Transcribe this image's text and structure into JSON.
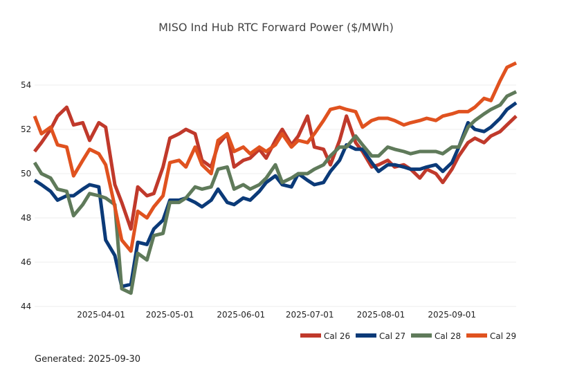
{
  "footer": {
    "generated": "Generated: 2025-09-30"
  },
  "chart_data": {
    "type": "line",
    "title": "MISO Ind Hub RTC Forward Power ($/MWh)",
    "xlabel": "",
    "ylabel": "",
    "ylim": [
      44,
      55.2
    ],
    "xlim": [
      "2025-03-03",
      "2025-09-29"
    ],
    "yticks": [
      44,
      46,
      48,
      50,
      52,
      54
    ],
    "xticks": [
      "2025-04-01",
      "2025-05-01",
      "2025-06-01",
      "2025-07-01",
      "2025-08-01",
      "2025-09-01"
    ],
    "grid": true,
    "legend_position": "bottom-right",
    "x": [
      "2025-03-03",
      "2025-03-06",
      "2025-03-10",
      "2025-03-13",
      "2025-03-17",
      "2025-03-20",
      "2025-03-24",
      "2025-03-27",
      "2025-03-31",
      "2025-04-03",
      "2025-04-07",
      "2025-04-10",
      "2025-04-14",
      "2025-04-17",
      "2025-04-21",
      "2025-04-24",
      "2025-04-28",
      "2025-05-01",
      "2025-05-05",
      "2025-05-08",
      "2025-05-12",
      "2025-05-15",
      "2025-05-19",
      "2025-05-22",
      "2025-05-26",
      "2025-05-29",
      "2025-06-02",
      "2025-06-05",
      "2025-06-09",
      "2025-06-12",
      "2025-06-16",
      "2025-06-19",
      "2025-06-23",
      "2025-06-26",
      "2025-06-30",
      "2025-07-03",
      "2025-07-07",
      "2025-07-10",
      "2025-07-14",
      "2025-07-17",
      "2025-07-21",
      "2025-07-24",
      "2025-07-28",
      "2025-07-31",
      "2025-08-04",
      "2025-08-07",
      "2025-08-11",
      "2025-08-14",
      "2025-08-18",
      "2025-08-21",
      "2025-08-25",
      "2025-08-28",
      "2025-09-01",
      "2025-09-04",
      "2025-09-08",
      "2025-09-11",
      "2025-09-15",
      "2025-09-18",
      "2025-09-22",
      "2025-09-25",
      "2025-09-29"
    ],
    "series": [
      {
        "name": "Cal 26",
        "color": "#c0392b",
        "values": [
          51.0,
          51.4,
          52.0,
          52.6,
          53.0,
          52.2,
          52.3,
          51.5,
          52.3,
          52.1,
          49.5,
          48.7,
          47.5,
          49.4,
          49.0,
          49.1,
          50.3,
          51.6,
          51.8,
          52.0,
          51.8,
          50.6,
          50.3,
          51.3,
          51.8,
          50.3,
          50.6,
          50.7,
          51.1,
          50.7,
          51.5,
          52.0,
          51.3,
          51.7,
          52.6,
          51.2,
          51.1,
          50.4,
          51.5,
          52.6,
          51.4,
          51.0,
          50.3,
          50.4,
          50.6,
          50.3,
          50.4,
          50.2,
          49.8,
          50.2,
          50.0,
          49.6,
          50.2,
          50.8,
          51.4,
          51.6,
          51.4,
          51.7,
          51.9,
          52.2,
          52.6
        ]
      },
      {
        "name": "Cal 27",
        "color": "#0b3a78",
        "values": [
          49.7,
          49.5,
          49.2,
          48.8,
          49.0,
          49.0,
          49.3,
          49.5,
          49.4,
          47.0,
          46.3,
          44.9,
          45.0,
          46.9,
          46.8,
          47.5,
          47.9,
          48.8,
          48.8,
          48.9,
          48.7,
          48.5,
          48.8,
          49.3,
          48.7,
          48.6,
          48.9,
          48.8,
          49.2,
          49.6,
          49.9,
          49.5,
          49.4,
          50.0,
          49.7,
          49.5,
          49.6,
          50.1,
          50.6,
          51.3,
          51.1,
          51.1,
          50.5,
          50.1,
          50.4,
          50.4,
          50.3,
          50.2,
          50.2,
          50.3,
          50.4,
          50.1,
          50.5,
          51.2,
          52.3,
          52.0,
          51.9,
          52.1,
          52.5,
          52.9,
          53.2
        ]
      },
      {
        "name": "Cal 28",
        "color": "#5f7a5a",
        "values": [
          50.5,
          50.0,
          49.8,
          49.3,
          49.2,
          48.1,
          48.6,
          49.1,
          49.0,
          48.9,
          48.6,
          44.8,
          44.6,
          46.4,
          46.1,
          47.2,
          47.3,
          48.7,
          48.7,
          48.9,
          49.4,
          49.3,
          49.4,
          50.2,
          50.3,
          49.3,
          49.5,
          49.3,
          49.5,
          49.8,
          50.4,
          49.6,
          49.8,
          50.0,
          50.0,
          50.2,
          50.4,
          50.8,
          51.2,
          51.2,
          51.7,
          51.3,
          50.8,
          50.8,
          51.2,
          51.1,
          51.0,
          50.9,
          51.0,
          51.0,
          51.0,
          50.9,
          51.2,
          51.2,
          52.1,
          52.4,
          52.7,
          52.9,
          53.1,
          53.5,
          53.7
        ]
      },
      {
        "name": "Cal 29",
        "color": "#e0521f",
        "values": [
          52.6,
          51.8,
          52.1,
          51.3,
          51.2,
          49.9,
          50.6,
          51.1,
          50.9,
          50.4,
          48.5,
          47.0,
          46.5,
          48.3,
          48.0,
          48.5,
          49.0,
          50.5,
          50.6,
          50.3,
          51.2,
          50.4,
          50.0,
          51.5,
          51.8,
          51.0,
          51.2,
          50.9,
          51.2,
          51.0,
          51.3,
          51.8,
          51.2,
          51.5,
          51.4,
          51.8,
          52.4,
          52.9,
          53.0,
          52.9,
          52.8,
          52.1,
          52.4,
          52.5,
          52.5,
          52.4,
          52.2,
          52.3,
          52.4,
          52.5,
          52.4,
          52.6,
          52.7,
          52.8,
          52.8,
          53.0,
          53.4,
          53.3,
          54.2,
          54.8,
          55.0
        ]
      }
    ]
  }
}
